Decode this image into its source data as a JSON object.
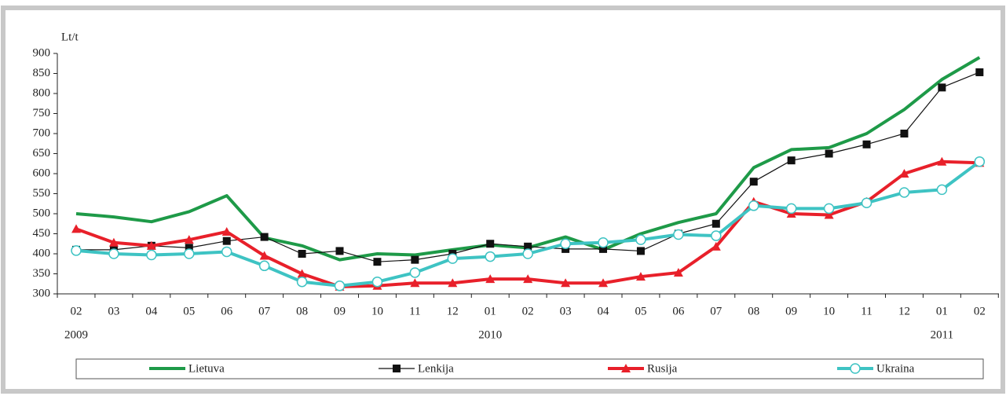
{
  "chart_data": {
    "type": "line",
    "y_label": "Lt/t",
    "categories": [
      "02",
      "03",
      "04",
      "05",
      "06",
      "07",
      "08",
      "09",
      "10",
      "11",
      "12",
      "01",
      "02",
      "03",
      "04",
      "05",
      "06",
      "07",
      "08",
      "09",
      "10",
      "11",
      "12",
      "01",
      "02"
    ],
    "years": [
      "2009",
      null,
      null,
      null,
      null,
      null,
      null,
      null,
      null,
      null,
      null,
      "2010",
      null,
      null,
      null,
      null,
      null,
      null,
      null,
      null,
      null,
      null,
      null,
      "2011",
      null
    ],
    "ylim": [
      300,
      900
    ],
    "yticks": [
      300,
      350,
      400,
      450,
      500,
      550,
      600,
      650,
      700,
      750,
      800,
      850,
      900
    ],
    "series": [
      {
        "name": "Lietuva",
        "color": "#1e9a48",
        "marker": "none",
        "values": [
          500,
          492,
          480,
          505,
          545,
          440,
          420,
          385,
          400,
          397,
          410,
          422,
          415,
          442,
          410,
          450,
          478,
          500,
          615,
          660,
          665,
          700,
          760,
          835,
          890
        ]
      },
      {
        "name": "Lenkija",
        "color": "#111111",
        "marker": "square",
        "values": [
          410,
          410,
          420,
          415,
          432,
          442,
          400,
          407,
          380,
          385,
          400,
          425,
          418,
          412,
          412,
          407,
          450,
          475,
          580,
          633,
          650,
          673,
          700,
          815,
          853
        ]
      },
      {
        "name": "Rusija",
        "color": "#e8202a",
        "marker": "triangle",
        "values": [
          462,
          428,
          420,
          435,
          455,
          395,
          350,
          318,
          320,
          327,
          327,
          337,
          337,
          327,
          327,
          343,
          353,
          418,
          530,
          500,
          497,
          530,
          600,
          630,
          627
        ]
      },
      {
        "name": "Ukraina",
        "color": "#3ec3c3",
        "marker": "circle",
        "values": [
          408,
          400,
          397,
          400,
          405,
          370,
          330,
          320,
          330,
          353,
          388,
          393,
          400,
          425,
          428,
          435,
          448,
          445,
          520,
          513,
          513,
          527,
          553,
          560,
          630
        ]
      }
    ]
  }
}
